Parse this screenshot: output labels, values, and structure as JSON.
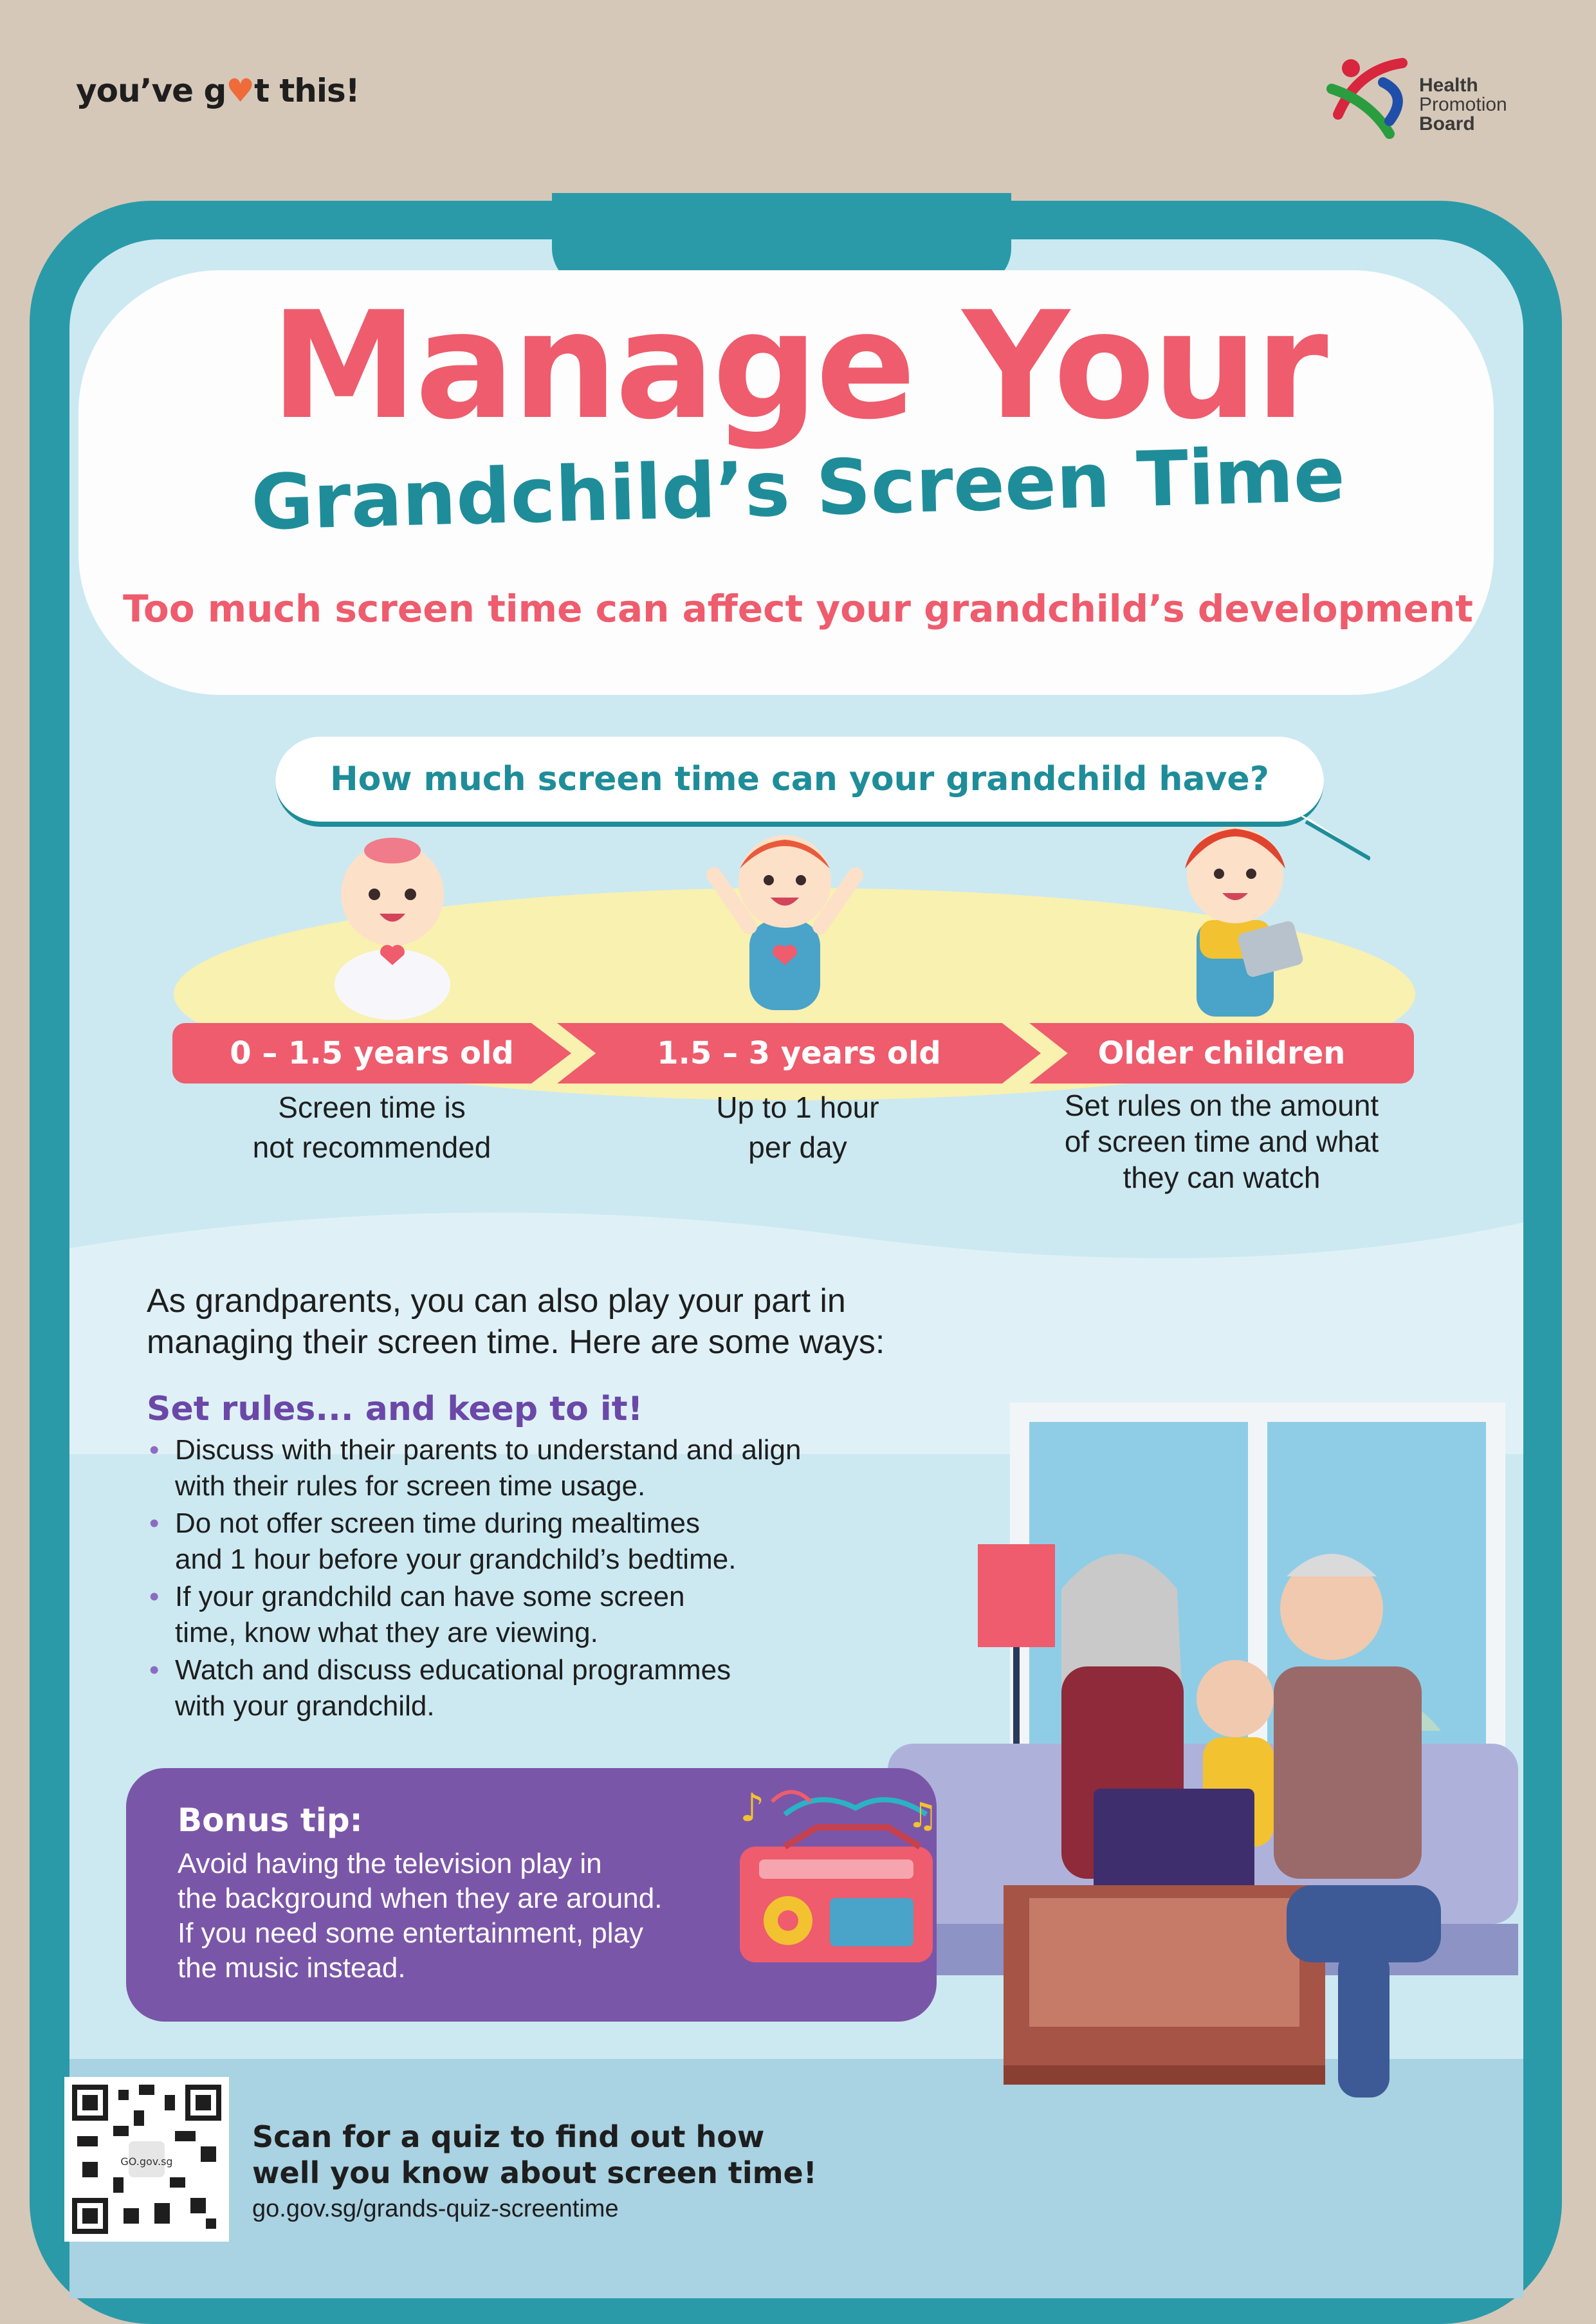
{
  "header": {
    "tagline_pre": "you’ve g",
    "tagline_heart": "♥",
    "tagline_post": "t this!",
    "logo_lines": [
      "Health",
      "Promotion",
      "Board"
    ]
  },
  "title": {
    "main": "Manage Your",
    "sub": "Grandchild’s Screen Time",
    "subtitle": "Too much screen time can affect your grandchild’s development"
  },
  "question": "How much screen time can your grandchild have?",
  "age_groups": [
    {
      "label": "0 – 1.5 years old",
      "desc_line1": "Screen time is",
      "desc_line2": "not recommended",
      "desc_line3": ""
    },
    {
      "label": "1.5 – 3 years old",
      "desc_line1": "Up to 1 hour",
      "desc_line2": "per day",
      "desc_line3": ""
    },
    {
      "label": "Older children",
      "desc_line1": "Set rules on the amount",
      "desc_line2": "of screen time and what",
      "desc_line3": "they can watch"
    }
  ],
  "intro": {
    "line1": "As grandparents, you can also play your part in",
    "line2": "managing their screen time. Here are some ways:"
  },
  "rules": {
    "heading": "Set rules... and keep to it!",
    "items": [
      {
        "line1": "Discuss with their parents to understand and align",
        "line2": "with their rules for screen time usage."
      },
      {
        "line1": "Do not offer screen time during mealtimes",
        "line2": "and 1 hour before your grandchild’s bedtime."
      },
      {
        "line1": "If your grandchild can have some screen",
        "line2": "time, know what they are viewing."
      },
      {
        "line1": "Watch and discuss educational programmes",
        "line2": "with your grandchild."
      }
    ]
  },
  "bonus": {
    "heading": "Bonus tip:",
    "lines": [
      "Avoid having the television play in",
      "the background when they are around.",
      "If you need some entertainment, play",
      "the music instead."
    ]
  },
  "footer": {
    "line1": "Scan for a quiz to find out how",
    "line2": "well you know about screen time!",
    "url": "go.gov.sg/grands-quiz-screentime",
    "qr_label": "GO.gov.sg"
  },
  "colors": {
    "coral": "#ee5c6d",
    "teal": "#1e8d99",
    "purple": "#7a56a8",
    "sky": "#cce9f1"
  }
}
